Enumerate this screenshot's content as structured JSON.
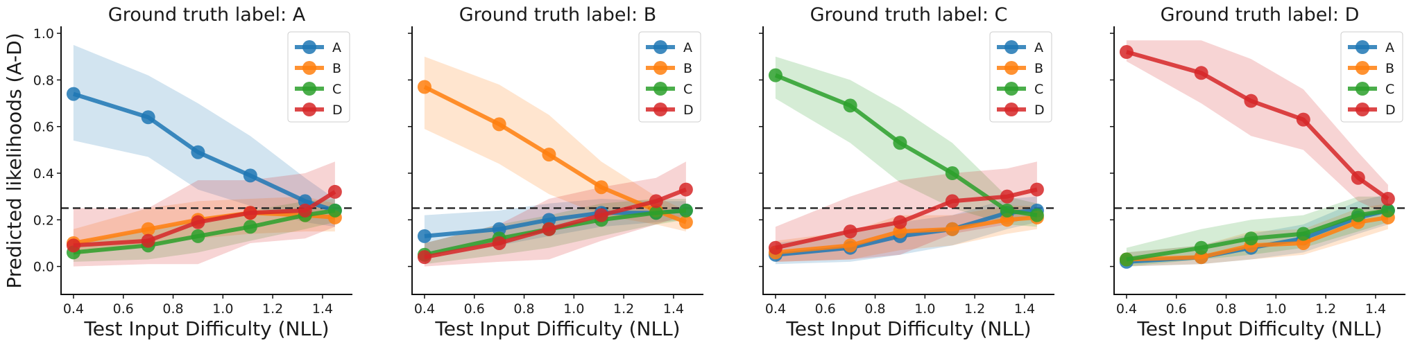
{
  "chart_data": [
    {
      "type": "line",
      "title": "Ground truth label: A",
      "xlabel": "Test Input Difficulty (NLL)",
      "ylabel": "Predicted likelihoods (A-D)",
      "xlim": [
        0.35,
        1.52
      ],
      "ylim": [
        -0.12,
        1.03
      ],
      "xticks": [
        "0.4",
        "0.6",
        "0.8",
        "1.0",
        "1.2",
        "1.4"
      ],
      "yticks": [
        "0.0",
        "0.2",
        "0.4",
        "0.6",
        "0.8",
        "1.0"
      ],
      "reference_line": 0.25,
      "legend": "top-right",
      "x": [
        0.4,
        0.7,
        0.9,
        1.11,
        1.33,
        1.45
      ],
      "series": [
        {
          "name": "A",
          "color": "#1f77b4",
          "values": [
            0.74,
            0.64,
            0.49,
            0.39,
            0.28,
            0.24
          ],
          "lower": [
            0.54,
            0.47,
            0.33,
            0.26,
            0.19,
            0.17
          ],
          "upper": [
            0.95,
            0.82,
            0.7,
            0.56,
            0.38,
            0.29
          ]
        },
        {
          "name": "B",
          "color": "#ff7f0e",
          "values": [
            0.1,
            0.16,
            0.2,
            0.23,
            0.22,
            0.21
          ],
          "lower": [
            0.05,
            0.09,
            0.12,
            0.14,
            0.15,
            0.15
          ],
          "upper": [
            0.16,
            0.25,
            0.28,
            0.29,
            0.3,
            0.27
          ]
        },
        {
          "name": "C",
          "color": "#2ca02c",
          "values": [
            0.06,
            0.09,
            0.13,
            0.17,
            0.22,
            0.24
          ],
          "lower": [
            0.02,
            0.03,
            0.06,
            0.11,
            0.16,
            0.19
          ],
          "upper": [
            0.1,
            0.16,
            0.2,
            0.24,
            0.28,
            0.29
          ]
        },
        {
          "name": "D",
          "color": "#d62728",
          "values": [
            0.09,
            0.11,
            0.19,
            0.23,
            0.24,
            0.32
          ],
          "lower": [
            0.0,
            0.01,
            0.01,
            0.1,
            0.12,
            0.17
          ],
          "upper": [
            0.25,
            0.25,
            0.37,
            0.37,
            0.4,
            0.45
          ]
        }
      ]
    },
    {
      "type": "line",
      "title": "Ground truth label: B",
      "xlabel": "Test Input Difficulty (NLL)",
      "xlim": [
        0.35,
        1.52
      ],
      "ylim": [
        -0.12,
        1.03
      ],
      "xticks": [
        "0.4",
        "0.6",
        "0.8",
        "1.0",
        "1.2",
        "1.4"
      ],
      "reference_line": 0.25,
      "legend": "top-right",
      "x": [
        0.4,
        0.7,
        0.9,
        1.11,
        1.33,
        1.45
      ],
      "series": [
        {
          "name": "A",
          "color": "#1f77b4",
          "values": [
            0.13,
            0.16,
            0.2,
            0.23,
            0.23,
            0.24
          ],
          "lower": [
            0.06,
            0.09,
            0.13,
            0.17,
            0.19,
            0.2
          ],
          "upper": [
            0.22,
            0.24,
            0.27,
            0.29,
            0.28,
            0.28
          ]
        },
        {
          "name": "B",
          "color": "#ff7f0e",
          "values": [
            0.77,
            0.61,
            0.48,
            0.34,
            0.24,
            0.19
          ],
          "lower": [
            0.59,
            0.44,
            0.31,
            0.22,
            0.18,
            0.15
          ],
          "upper": [
            0.9,
            0.78,
            0.65,
            0.45,
            0.3,
            0.24
          ]
        },
        {
          "name": "C",
          "color": "#2ca02c",
          "values": [
            0.05,
            0.12,
            0.16,
            0.2,
            0.23,
            0.24
          ],
          "lower": [
            0.01,
            0.05,
            0.08,
            0.13,
            0.18,
            0.2
          ],
          "upper": [
            0.1,
            0.18,
            0.22,
            0.27,
            0.29,
            0.29
          ]
        },
        {
          "name": "D",
          "color": "#d62728",
          "values": [
            0.04,
            0.1,
            0.16,
            0.22,
            0.28,
            0.33
          ],
          "lower": [
            0.0,
            0.02,
            0.03,
            0.11,
            0.18,
            0.22
          ],
          "upper": [
            0.1,
            0.18,
            0.29,
            0.34,
            0.38,
            0.45
          ]
        }
      ]
    },
    {
      "type": "line",
      "title": "Ground truth label: C",
      "xlabel": "Test Input Difficulty (NLL)",
      "xlim": [
        0.35,
        1.52
      ],
      "ylim": [
        -0.12,
        1.03
      ],
      "xticks": [
        "0.4",
        "0.6",
        "0.8",
        "1.0",
        "1.2",
        "1.4"
      ],
      "reference_line": 0.25,
      "legend": "top-right",
      "x": [
        0.4,
        0.7,
        0.9,
        1.11,
        1.33,
        1.45
      ],
      "series": [
        {
          "name": "A",
          "color": "#1f77b4",
          "values": [
            0.05,
            0.08,
            0.13,
            0.16,
            0.23,
            0.24
          ],
          "lower": [
            0.01,
            0.02,
            0.05,
            0.09,
            0.16,
            0.19
          ],
          "upper": [
            0.1,
            0.14,
            0.19,
            0.22,
            0.29,
            0.3
          ]
        },
        {
          "name": "B",
          "color": "#ff7f0e",
          "values": [
            0.06,
            0.09,
            0.15,
            0.16,
            0.2,
            0.21
          ],
          "lower": [
            0.02,
            0.03,
            0.07,
            0.09,
            0.14,
            0.16
          ],
          "upper": [
            0.11,
            0.15,
            0.22,
            0.22,
            0.26,
            0.26
          ]
        },
        {
          "name": "C",
          "color": "#2ca02c",
          "values": [
            0.82,
            0.69,
            0.53,
            0.4,
            0.24,
            0.22
          ],
          "lower": [
            0.72,
            0.53,
            0.36,
            0.25,
            0.18,
            0.17
          ],
          "upper": [
            0.9,
            0.8,
            0.68,
            0.53,
            0.3,
            0.27
          ]
        },
        {
          "name": "D",
          "color": "#d62728",
          "values": [
            0.08,
            0.15,
            0.19,
            0.28,
            0.3,
            0.33
          ],
          "lower": [
            0.02,
            0.03,
            0.05,
            0.14,
            0.18,
            0.22
          ],
          "upper": [
            0.17,
            0.3,
            0.37,
            0.4,
            0.42,
            0.45
          ]
        }
      ]
    },
    {
      "type": "line",
      "title": "Ground truth label: D",
      "xlabel": "Test Input Difficulty (NLL)",
      "xlim": [
        0.35,
        1.52
      ],
      "ylim": [
        -0.12,
        1.03
      ],
      "xticks": [
        "0.4",
        "0.6",
        "0.8",
        "1.0",
        "1.2",
        "1.4"
      ],
      "reference_line": 0.25,
      "legend": "top-right",
      "x": [
        0.4,
        0.7,
        0.9,
        1.11,
        1.33,
        1.45
      ],
      "series": [
        {
          "name": "A",
          "color": "#1f77b4",
          "values": [
            0.02,
            0.04,
            0.08,
            0.12,
            0.21,
            0.24
          ],
          "lower": [
            0.0,
            0.01,
            0.03,
            0.06,
            0.14,
            0.18
          ],
          "upper": [
            0.06,
            0.09,
            0.14,
            0.18,
            0.28,
            0.31
          ]
        },
        {
          "name": "B",
          "color": "#ff7f0e",
          "values": [
            0.03,
            0.04,
            0.09,
            0.1,
            0.19,
            0.21
          ],
          "lower": [
            0.0,
            0.01,
            0.03,
            0.05,
            0.12,
            0.16
          ],
          "upper": [
            0.06,
            0.09,
            0.15,
            0.16,
            0.25,
            0.27
          ]
        },
        {
          "name": "C",
          "color": "#2ca02c",
          "values": [
            0.03,
            0.08,
            0.12,
            0.14,
            0.22,
            0.24
          ],
          "lower": [
            0.0,
            0.03,
            0.05,
            0.08,
            0.15,
            0.19
          ],
          "upper": [
            0.08,
            0.16,
            0.2,
            0.22,
            0.3,
            0.3
          ]
        },
        {
          "name": "D",
          "color": "#d62728",
          "values": [
            0.92,
            0.83,
            0.71,
            0.63,
            0.38,
            0.29
          ],
          "lower": [
            0.88,
            0.7,
            0.56,
            0.5,
            0.28,
            0.22
          ],
          "upper": [
            0.97,
            0.97,
            0.89,
            0.76,
            0.49,
            0.35
          ]
        }
      ]
    }
  ]
}
